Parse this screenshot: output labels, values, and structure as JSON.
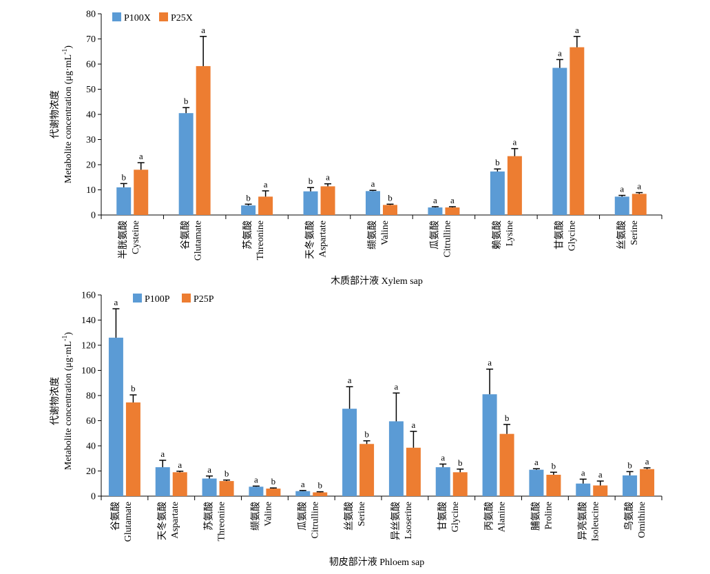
{
  "chart_data": [
    {
      "type": "bar",
      "ylabel_cn": "代谢物浓度",
      "ylabel_en": "Metabolite concentration (μg·mL",
      "ylabel_sup": "-1",
      "ylabel_close": ")",
      "xlabel": "木质部汁液 Xylem sap",
      "ylim": [
        0,
        80
      ],
      "yticks": [
        0,
        10,
        20,
        30,
        40,
        50,
        60,
        70,
        80
      ],
      "categories_cn": [
        "半胱氨酸",
        "谷氨酸",
        "苏氨酸",
        "天冬氨酸",
        "缬氨酸",
        "瓜氨酸",
        "赖氨酸",
        "甘氨酸",
        "丝氨酸"
      ],
      "categories_en": [
        "Cysteine",
        "Glutamate",
        "Threonine",
        "Aspartate",
        "Valine",
        "Citrulline",
        "Lysine",
        "Glycine",
        "Serine"
      ],
      "series": [
        {
          "name": "P100X",
          "color": "#5b9bd5",
          "values": [
            11,
            40.5,
            3.8,
            9.4,
            9.5,
            3,
            17.3,
            58.5,
            7.3
          ],
          "errors": [
            1.5,
            2.2,
            0.5,
            1.5,
            0.3,
            0.3,
            1,
            3.3,
            0.5
          ],
          "letters": [
            "b",
            "b",
            "b",
            "b",
            "a",
            "a",
            "b",
            "a",
            "a"
          ]
        },
        {
          "name": "P25X",
          "color": "#ed7d31",
          "values": [
            18,
            59.2,
            7.3,
            11.4,
            4,
            3,
            23.4,
            66.7,
            8.4
          ],
          "errors": [
            2.8,
            11.8,
            2.3,
            1,
            0.3,
            0.3,
            3,
            4.3,
            0.5
          ],
          "letters": [
            "a",
            "a",
            "a",
            "a",
            "b",
            "a",
            "a",
            "a",
            "a"
          ]
        }
      ]
    },
    {
      "type": "bar",
      "ylabel_cn": "代谢物浓度",
      "ylabel_en": "Metabolite concentration (μg·mL",
      "ylabel_sup": "-1",
      "ylabel_close": ")",
      "xlabel": "韧皮部汁液 Phloem sap",
      "ylim": [
        0,
        160
      ],
      "yticks": [
        0,
        20,
        40,
        60,
        80,
        100,
        120,
        140,
        160
      ],
      "categories_cn": [
        "谷氨酸",
        "天冬氨酸",
        "苏氨酸",
        "缬氨酸",
        "瓜氨酸",
        "丝氨酸",
        "异丝氨酸",
        "甘氨酸",
        "丙氨酸",
        "脯氨酸",
        "异亮氨酸",
        "鸟氨酸"
      ],
      "categories_en": [
        "Glutamate",
        "Aspartate",
        "Threonine",
        "Valine",
        "Citrulline",
        "Serine",
        "Lsoserine",
        "Glycine",
        "Alanine",
        "Proline",
        "Isoleucine",
        "Omithine"
      ],
      "series": [
        {
          "name": "P100P",
          "color": "#5b9bd5",
          "values": [
            126,
            23,
            14,
            7.5,
            4,
            69.5,
            59.5,
            23,
            81,
            21,
            10,
            16.5
          ],
          "errors": [
            23,
            5.5,
            2,
            0.5,
            0.5,
            17.5,
            22.5,
            2.5,
            20,
            0.8,
            3.5,
            3
          ],
          "letters": [
            "a",
            "a",
            "a",
            "a",
            "a",
            "a",
            "a",
            "a",
            "a",
            "a",
            "a",
            "b"
          ]
        },
        {
          "name": "P25P",
          "color": "#ed7d31",
          "values": [
            74.5,
            19,
            12,
            6,
            3,
            41.5,
            38.5,
            19,
            49.5,
            17,
            8.5,
            21.5
          ],
          "errors": [
            6,
            0.8,
            0.8,
            0.5,
            0.5,
            2.5,
            13,
            2.5,
            7.5,
            2,
            3.5,
            1
          ],
          "letters": [
            "b",
            "a",
            "b",
            "b",
            "b",
            "b",
            "a",
            "b",
            "b",
            "b",
            "a",
            "a"
          ]
        }
      ]
    }
  ]
}
